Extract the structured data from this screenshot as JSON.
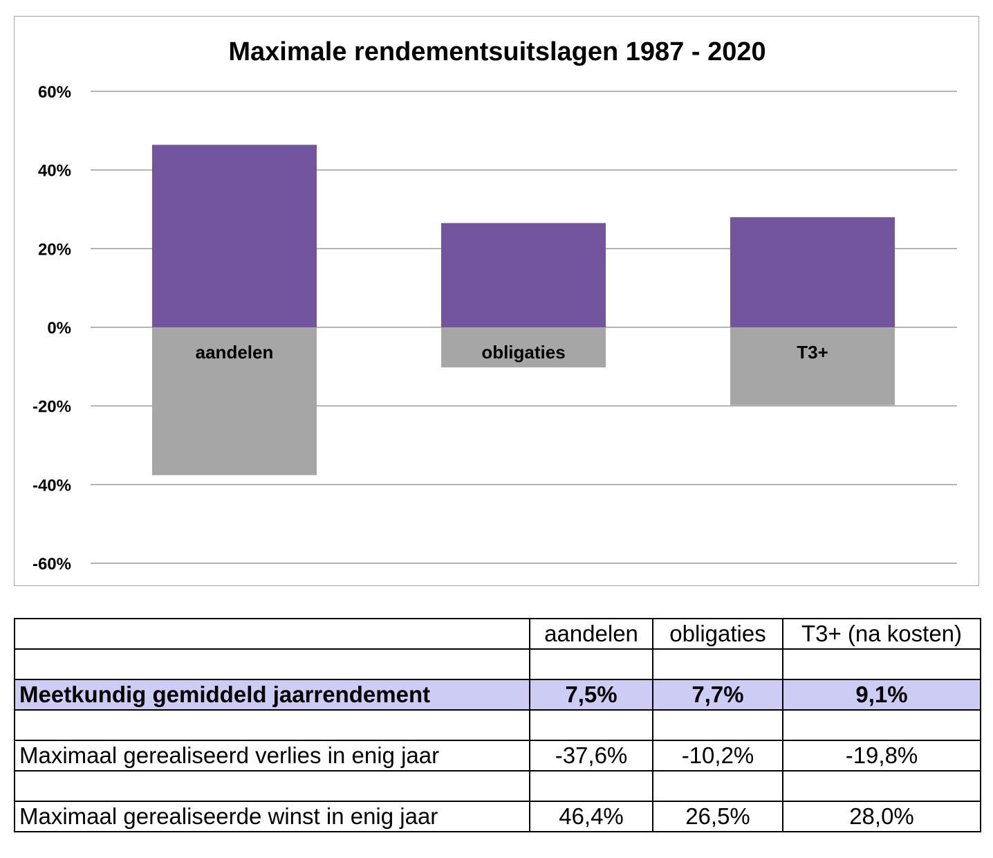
{
  "chart_data": {
    "type": "bar",
    "title": "Maximale rendementsuitslagen 1987 - 2020",
    "categories": [
      "aandelen",
      "obligaties",
      "T3+"
    ],
    "series": [
      {
        "values": [
          46.4,
          26.5,
          28.0
        ],
        "color": "#72559c"
      },
      {
        "values": [
          -37.6,
          -10.2,
          -19.8
        ],
        "color": "#a6a6a6"
      }
    ],
    "ylim": [
      -60,
      60
    ],
    "yticks": [
      60,
      40,
      20,
      0,
      -20,
      -40,
      -60
    ],
    "ytick_labels": [
      "60%",
      "40%",
      "20%",
      "0%",
      "-20%",
      "-40%",
      "-60%"
    ],
    "grid": true,
    "legend": "none"
  },
  "table": {
    "headers": [
      "",
      "aandelen",
      "obligaties",
      "T3+ (na kosten)"
    ],
    "rows": [
      {
        "type": "spacer",
        "cells": [
          "",
          "",
          "",
          ""
        ]
      },
      {
        "type": "highlight",
        "cells": [
          "Meetkundig gemiddeld jaarrendement",
          "7,5%",
          "7,7%",
          "9,1%"
        ]
      },
      {
        "type": "spacer",
        "cells": [
          "",
          "",
          "",
          ""
        ]
      },
      {
        "type": "data",
        "cells": [
          "Maximaal gerealiseerd verlies in enig jaar",
          "-37,6%",
          "-10,2%",
          "-19,8%"
        ]
      },
      {
        "type": "spacer",
        "cells": [
          "",
          "",
          "",
          ""
        ]
      },
      {
        "type": "data",
        "cells": [
          "Maximaal gerealiseerde winst in enig jaar",
          "46,4%",
          "26,5%",
          "28,0%"
        ]
      }
    ]
  }
}
